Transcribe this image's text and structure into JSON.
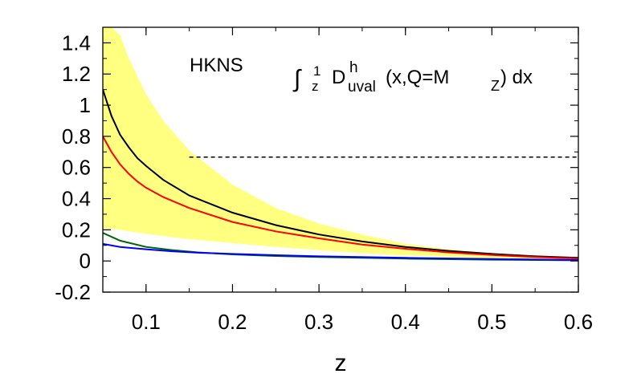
{
  "chart_data": {
    "type": "line",
    "xlabel": "z",
    "ylabel": "",
    "xlim": [
      0.05,
      0.6
    ],
    "ylim": [
      -0.2,
      1.5
    ],
    "x_ticks": [
      "0.1",
      "0.2",
      "0.3",
      "0.4",
      "0.5",
      "0.6"
    ],
    "x_tick_values": [
      0.1,
      0.2,
      0.3,
      0.4,
      0.5,
      0.6
    ],
    "y_ticks": [
      "-0.2",
      "0",
      "0.2",
      "0.4",
      "0.6",
      "0.8",
      "1",
      "1.2",
      "1.4"
    ],
    "y_tick_values": [
      -0.2,
      0,
      0.2,
      0.4,
      0.6,
      0.8,
      1.0,
      1.2,
      1.4
    ],
    "annotations": {
      "label": "HKNS",
      "formula_integral": "∫",
      "formula_upper": "1",
      "formula_lower": "z",
      "formula_D": "D",
      "formula_sup": "h",
      "formula_sub": "uval",
      "formula_args_1": "(x,Q=M",
      "formula_args_sub": "Z",
      "formula_args_2": ") dx"
    },
    "reference_line": {
      "y": 0.667,
      "style": "dashed",
      "color": "#000000"
    },
    "band": {
      "color": "#ffff80",
      "x": [
        0.05,
        0.06,
        0.07,
        0.08,
        0.1,
        0.12,
        0.15,
        0.2,
        0.25,
        0.3,
        0.35,
        0.4,
        0.45,
        0.5,
        0.55,
        0.6
      ],
      "upper": [
        1.5,
        1.5,
        1.45,
        1.3,
        1.07,
        0.9,
        0.71,
        0.49,
        0.34,
        0.24,
        0.17,
        0.11,
        0.075,
        0.05,
        0.03,
        0.02
      ],
      "lower": [
        0.21,
        0.205,
        0.2,
        0.19,
        0.175,
        0.16,
        0.14,
        0.115,
        0.09,
        0.07,
        0.05,
        0.035,
        0.025,
        0.015,
        0.01,
        0.005
      ]
    },
    "series": [
      {
        "color": "#000000",
        "x": [
          0.05,
          0.06,
          0.07,
          0.08,
          0.09,
          0.1,
          0.12,
          0.15,
          0.2,
          0.25,
          0.3,
          0.35,
          0.4,
          0.45,
          0.5,
          0.55,
          0.6
        ],
        "y": [
          1.1,
          0.93,
          0.81,
          0.73,
          0.66,
          0.61,
          0.52,
          0.42,
          0.31,
          0.23,
          0.17,
          0.125,
          0.09,
          0.065,
          0.045,
          0.03,
          0.02
        ]
      },
      {
        "color": "#ff0000",
        "x": [
          0.05,
          0.06,
          0.07,
          0.08,
          0.09,
          0.1,
          0.12,
          0.15,
          0.2,
          0.25,
          0.3,
          0.35,
          0.4,
          0.45,
          0.5,
          0.55,
          0.6
        ],
        "y": [
          0.8,
          0.7,
          0.62,
          0.56,
          0.51,
          0.47,
          0.41,
          0.34,
          0.25,
          0.19,
          0.145,
          0.105,
          0.078,
          0.055,
          0.038,
          0.025,
          0.015
        ]
      },
      {
        "color": "#006400",
        "x": [
          0.05,
          0.07,
          0.1,
          0.13,
          0.16,
          0.2,
          0.25,
          0.3,
          0.4,
          0.5,
          0.6
        ],
        "y": [
          0.18,
          0.13,
          0.09,
          0.07,
          0.055,
          0.042,
          0.032,
          0.025,
          0.015,
          0.008,
          0.004
        ]
      },
      {
        "color": "#0000ff",
        "x": [
          0.05,
          0.07,
          0.1,
          0.13,
          0.16,
          0.2,
          0.25,
          0.3,
          0.4,
          0.5,
          0.6
        ],
        "y": [
          0.11,
          0.09,
          0.075,
          0.062,
          0.053,
          0.045,
          0.037,
          0.03,
          0.02,
          0.012,
          0.006
        ]
      }
    ]
  }
}
